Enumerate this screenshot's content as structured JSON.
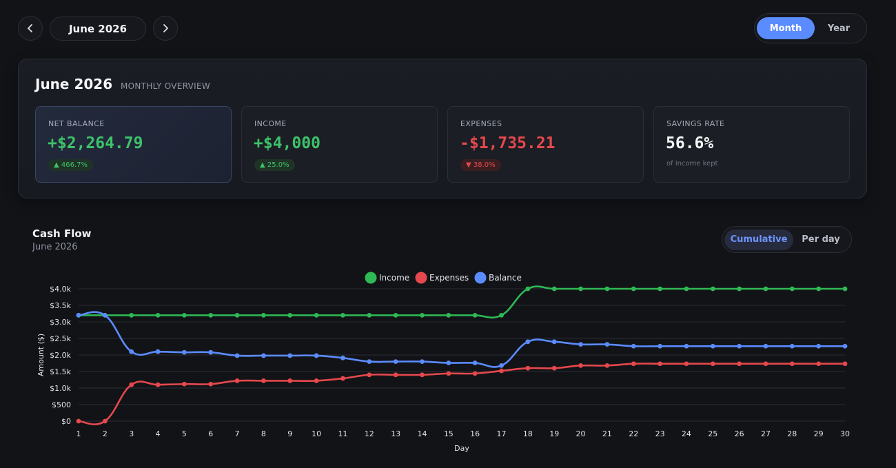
{
  "nav": {
    "month_label": "June 2026",
    "prev_icon": "chevron-left-icon",
    "next_icon": "chevron-right-icon"
  },
  "period_toggle": {
    "month": "Month",
    "year": "Year",
    "active": "Month"
  },
  "overview": {
    "title": "June 2026",
    "subtitle": "MONTHLY OVERVIEW",
    "cards": [
      {
        "label": "NET BALANCE",
        "value": "+$2,264.79",
        "badge": "▲ 466.7%",
        "color": "#3ec26a"
      },
      {
        "label": "INCOME",
        "value": "+$4,000",
        "badge": "▲ 25.0%",
        "color": "#3ec26a"
      },
      {
        "label": "EXPENSES",
        "value": "-$1,735.21",
        "badge": "▼ 38.0%",
        "color": "#e5484d"
      },
      {
        "label": "SAVINGS RATE",
        "value": "56.6%",
        "note": "of income kept",
        "color": "#f5f6f8"
      }
    ]
  },
  "cashflow": {
    "title": "Cash Flow",
    "subtitle": "June 2026",
    "mode_toggle": {
      "cumulative": "Cumulative",
      "per_day": "Per day",
      "active": "Cumulative"
    }
  },
  "colors": {
    "accent": "#5b8cff",
    "income": "#2fb955",
    "expenses": "#e5484d",
    "balance": "#5b8cff"
  },
  "chart_data": {
    "type": "line",
    "xlabel": "Day",
    "ylabel": "Amount ($)",
    "ylim": [
      0,
      4000
    ],
    "yticks": [
      "$0",
      "$500",
      "$1.0k",
      "$1.5k",
      "$2.0k",
      "$2.5k",
      "$3.0k",
      "$3.5k",
      "$4.0k"
    ],
    "ytick_values": [
      0,
      500,
      1000,
      1500,
      2000,
      2500,
      3000,
      3500,
      4000
    ],
    "x": [
      1,
      2,
      3,
      4,
      5,
      6,
      7,
      8,
      9,
      10,
      11,
      12,
      13,
      14,
      15,
      16,
      17,
      18,
      19,
      20,
      21,
      22,
      23,
      24,
      25,
      26,
      27,
      28,
      29,
      30
    ],
    "legend_position": "top-center",
    "grid": true,
    "series": [
      {
        "name": "Income",
        "color": "#2fb955",
        "values": [
          3200,
          3200,
          3200,
          3200,
          3200,
          3200,
          3200,
          3200,
          3200,
          3200,
          3200,
          3200,
          3200,
          3200,
          3200,
          3200,
          3200,
          4000,
          4000,
          4000,
          4000,
          4000,
          4000,
          4000,
          4000,
          4000,
          4000,
          4000,
          4000,
          4000
        ]
      },
      {
        "name": "Expenses",
        "color": "#e5484d",
        "values": [
          0,
          0,
          1100,
          1100,
          1120,
          1120,
          1220,
          1220,
          1220,
          1220,
          1290,
          1400,
          1400,
          1400,
          1440,
          1440,
          1520,
          1600,
          1600,
          1680,
          1680,
          1735,
          1735,
          1735,
          1735,
          1735,
          1735,
          1735,
          1735,
          1735
        ]
      },
      {
        "name": "Balance",
        "color": "#5b8cff",
        "values": [
          3200,
          3200,
          2100,
          2100,
          2080,
          2080,
          1980,
          1980,
          1980,
          1980,
          1910,
          1800,
          1800,
          1800,
          1760,
          1760,
          1680,
          2400,
          2400,
          2320,
          2320,
          2265,
          2265,
          2265,
          2265,
          2265,
          2265,
          2265,
          2265,
          2265
        ]
      }
    ]
  }
}
